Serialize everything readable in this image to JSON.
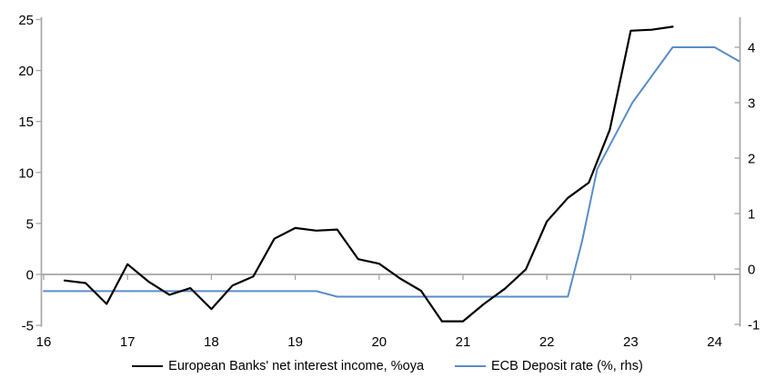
{
  "chart_data": {
    "type": "line",
    "title": "",
    "grid": "off",
    "legend_position": "bottom-center",
    "x_axis": {
      "ticks": [
        16,
        17,
        18,
        19,
        20,
        21,
        22,
        23,
        24
      ],
      "range": [
        16,
        24.3
      ]
    },
    "left_axis": {
      "label": "",
      "ticks": [
        25,
        20,
        15,
        10,
        5,
        0,
        -5
      ],
      "range": [
        -5,
        25
      ]
    },
    "right_axis": {
      "label": "",
      "ticks": [
        4,
        3,
        2,
        1,
        0,
        -1
      ],
      "range": [
        -1,
        4.5
      ]
    },
    "axis_color": "#a6a6a6",
    "text_color": "#000000",
    "series": [
      {
        "name": "European Banks' net interest income, %oya",
        "axis": "left",
        "color": "#000000",
        "width": 2.2,
        "points": [
          [
            16.25,
            -0.6
          ],
          [
            16.5,
            -0.85
          ],
          [
            16.75,
            -2.9
          ],
          [
            17.0,
            1.0
          ],
          [
            17.25,
            -0.7
          ],
          [
            17.5,
            -2.0
          ],
          [
            17.75,
            -1.35
          ],
          [
            18.0,
            -3.4
          ],
          [
            18.25,
            -1.1
          ],
          [
            18.5,
            -0.2
          ],
          [
            18.75,
            3.5
          ],
          [
            19.0,
            4.55
          ],
          [
            19.25,
            4.3
          ],
          [
            19.5,
            4.4
          ],
          [
            19.75,
            1.5
          ],
          [
            20.0,
            1.05
          ],
          [
            20.25,
            -0.4
          ],
          [
            20.5,
            -1.6
          ],
          [
            20.75,
            -4.6
          ],
          [
            21.0,
            -4.6
          ],
          [
            21.25,
            -2.9
          ],
          [
            21.5,
            -1.4
          ],
          [
            21.75,
            0.5
          ],
          [
            22.0,
            5.2
          ],
          [
            22.25,
            7.5
          ],
          [
            22.5,
            9.0
          ],
          [
            22.75,
            14.2
          ],
          [
            23.0,
            23.9
          ],
          [
            23.25,
            24.0
          ],
          [
            23.5,
            24.3
          ]
        ]
      },
      {
        "name": "ECB Deposit rate (%, rhs)",
        "axis": "right",
        "color": "#5b8cc8",
        "width": 2.0,
        "points": [
          [
            16.0,
            -0.4
          ],
          [
            19.25,
            -0.4
          ],
          [
            19.5,
            -0.5
          ],
          [
            22.25,
            -0.5
          ],
          [
            22.42,
            0.5
          ],
          [
            22.6,
            1.8
          ],
          [
            23.02,
            3.0
          ],
          [
            23.5,
            4.0
          ],
          [
            24.0,
            4.0
          ],
          [
            24.29,
            3.75
          ]
        ]
      }
    ]
  }
}
